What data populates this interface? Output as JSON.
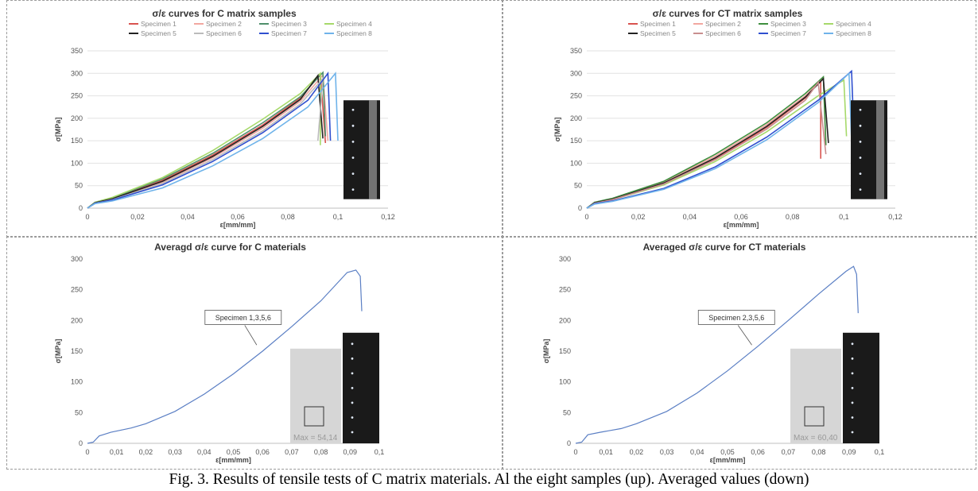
{
  "figure": {
    "caption": "Fig. 3. Results of tensile tests of C matrix materials. Al the eight samples (up). Averaged values (down)"
  },
  "chart_data": [
    {
      "type": "line",
      "title": "σ/ε curves for C matrix samples",
      "xlabel": "ε[mm/mm]",
      "ylabel": "σ[MPa]",
      "xlim": [
        0,
        0.12
      ],
      "ylim": [
        0,
        350
      ],
      "x_ticks": [
        "0",
        "0,02",
        "0,04",
        "0,06",
        "0,08",
        "0,1",
        "0,12"
      ],
      "y_ticks": [
        "0",
        "50",
        "100",
        "150",
        "200",
        "250",
        "300",
        "350"
      ],
      "grid": true,
      "legend": "top",
      "series": [
        {
          "name": "Specimen 1",
          "color": "#d9534f",
          "points": [
            [
              0,
              0
            ],
            [
              0.003,
              12
            ],
            [
              0.01,
              22
            ],
            [
              0.03,
              62
            ],
            [
              0.05,
              118
            ],
            [
              0.07,
              185
            ],
            [
              0.085,
              245
            ],
            [
              0.093,
              298
            ],
            [
              0.095,
              145
            ]
          ]
        },
        {
          "name": "Specimen 2",
          "color": "#f2a7a0",
          "points": [
            [
              0,
              0
            ],
            [
              0.003,
              12
            ],
            [
              0.01,
              20
            ],
            [
              0.03,
              58
            ],
            [
              0.05,
              112
            ],
            [
              0.07,
              178
            ],
            [
              0.085,
              238
            ],
            [
              0.094,
              296
            ],
            [
              0.096,
              150
            ]
          ]
        },
        {
          "name": "Specimen 3",
          "color": "#4f8f6b",
          "points": [
            [
              0,
              0
            ],
            [
              0.003,
              13
            ],
            [
              0.01,
              23
            ],
            [
              0.03,
              65
            ],
            [
              0.05,
              122
            ],
            [
              0.07,
              190
            ],
            [
              0.085,
              248
            ],
            [
              0.094,
              302
            ],
            [
              0.095,
              160
            ]
          ]
        },
        {
          "name": "Specimen 4",
          "color": "#a6d96a",
          "points": [
            [
              0,
              0
            ],
            [
              0.003,
              13
            ],
            [
              0.01,
              24
            ],
            [
              0.03,
              68
            ],
            [
              0.05,
              128
            ],
            [
              0.07,
              198
            ],
            [
              0.085,
              255
            ],
            [
              0.093,
              300
            ],
            [
              0.093,
              140
            ]
          ]
        },
        {
          "name": "Specimen 5",
          "color": "#222222",
          "points": [
            [
              0,
              0
            ],
            [
              0.003,
              12
            ],
            [
              0.01,
              21
            ],
            [
              0.03,
              60
            ],
            [
              0.05,
              115
            ],
            [
              0.07,
              182
            ],
            [
              0.085,
              242
            ],
            [
              0.092,
              295
            ],
            [
              0.094,
              155
            ]
          ]
        },
        {
          "name": "Specimen 6",
          "color": "#bbbbbb",
          "points": [
            [
              0,
              0
            ],
            [
              0.003,
              11
            ],
            [
              0.01,
              19
            ],
            [
              0.03,
              55
            ],
            [
              0.05,
              108
            ],
            [
              0.07,
              172
            ],
            [
              0.085,
              232
            ],
            [
              0.094,
              288
            ],
            [
              0.092,
              150
            ]
          ]
        },
        {
          "name": "Specimen 7",
          "color": "#2f4fcf",
          "points": [
            [
              0,
              0
            ],
            [
              0.003,
              11
            ],
            [
              0.01,
              18
            ],
            [
              0.03,
              52
            ],
            [
              0.05,
              104
            ],
            [
              0.07,
              168
            ],
            [
              0.088,
              240
            ],
            [
              0.096,
              300
            ],
            [
              0.097,
              150
            ]
          ]
        },
        {
          "name": "Specimen 8",
          "color": "#6fb3ea",
          "points": [
            [
              0,
              0
            ],
            [
              0.003,
              10
            ],
            [
              0.01,
              16
            ],
            [
              0.03,
              45
            ],
            [
              0.05,
              94
            ],
            [
              0.07,
              155
            ],
            [
              0.088,
              225
            ],
            [
              0.099,
              300
            ],
            [
              0.1,
              150
            ]
          ]
        }
      ]
    },
    {
      "type": "line",
      "title": "σ/ε curves for CT matrix samples",
      "xlabel": "ε[mm/mm]",
      "ylabel": "σ[MPa]",
      "xlim": [
        0,
        0.12
      ],
      "ylim": [
        0,
        350
      ],
      "x_ticks": [
        "0",
        "0,02",
        "0,04",
        "0,06",
        "0,08",
        "0,1",
        "0,12"
      ],
      "y_ticks": [
        "0",
        "50",
        "100",
        "150",
        "200",
        "250",
        "300",
        "350"
      ],
      "grid": true,
      "legend": "top",
      "series": [
        {
          "name": "Specimen 1",
          "color": "#d9534f",
          "points": [
            [
              0,
              0
            ],
            [
              0.003,
              12
            ],
            [
              0.01,
              20
            ],
            [
              0.03,
              55
            ],
            [
              0.05,
              110
            ],
            [
              0.07,
              180
            ],
            [
              0.085,
              245
            ],
            [
              0.091,
              285
            ],
            [
              0.091,
              110
            ]
          ]
        },
        {
          "name": "Specimen 2",
          "color": "#f2a7a0",
          "points": [
            [
              0,
              0
            ],
            [
              0.003,
              12
            ],
            [
              0.01,
              21
            ],
            [
              0.03,
              58
            ],
            [
              0.05,
              116
            ],
            [
              0.07,
              186
            ],
            [
              0.085,
              250
            ],
            [
              0.092,
              290
            ],
            [
              0.093,
              140
            ]
          ]
        },
        {
          "name": "Specimen 3",
          "color": "#3f8f3f",
          "points": [
            [
              0,
              0
            ],
            [
              0.003,
              13
            ],
            [
              0.01,
              22
            ],
            [
              0.03,
              60
            ],
            [
              0.05,
              120
            ],
            [
              0.07,
              190
            ],
            [
              0.085,
              255
            ],
            [
              0.092,
              292
            ],
            [
              0.093,
              140
            ]
          ]
        },
        {
          "name": "Specimen 4",
          "color": "#a6d96a",
          "points": [
            [
              0,
              0
            ],
            [
              0.003,
              12
            ],
            [
              0.01,
              19
            ],
            [
              0.03,
              52
            ],
            [
              0.05,
              104
            ],
            [
              0.07,
              170
            ],
            [
              0.09,
              250
            ],
            [
              0.1,
              285
            ],
            [
              0.101,
              160
            ]
          ]
        },
        {
          "name": "Specimen 5",
          "color": "#222222",
          "points": [
            [
              0,
              0
            ],
            [
              0.003,
              12
            ],
            [
              0.01,
              20
            ],
            [
              0.03,
              56
            ],
            [
              0.05,
              112
            ],
            [
              0.07,
              182
            ],
            [
              0.085,
              247
            ],
            [
              0.092,
              288
            ],
            [
              0.094,
              145
            ]
          ]
        },
        {
          "name": "Specimen 6",
          "color": "#c98f8f",
          "points": [
            [
              0,
              0
            ],
            [
              0.003,
              11
            ],
            [
              0.01,
              19
            ],
            [
              0.03,
              54
            ],
            [
              0.05,
              108
            ],
            [
              0.07,
              176
            ],
            [
              0.085,
              240
            ],
            [
              0.09,
              280
            ],
            [
              0.093,
              120
            ]
          ]
        },
        {
          "name": "Specimen 7",
          "color": "#2f4fcf",
          "points": [
            [
              0,
              0
            ],
            [
              0.003,
              10
            ],
            [
              0.01,
              16
            ],
            [
              0.03,
              44
            ],
            [
              0.05,
              92
            ],
            [
              0.07,
              158
            ],
            [
              0.09,
              240
            ],
            [
              0.103,
              305
            ],
            [
              0.104,
              150
            ]
          ]
        },
        {
          "name": "Specimen 8",
          "color": "#6fb3ea",
          "points": [
            [
              0,
              0
            ],
            [
              0.003,
              9
            ],
            [
              0.01,
              15
            ],
            [
              0.03,
              42
            ],
            [
              0.05,
              88
            ],
            [
              0.07,
              152
            ],
            [
              0.09,
              235
            ],
            [
              0.102,
              300
            ],
            [
              0.103,
              150
            ]
          ]
        }
      ]
    },
    {
      "type": "line",
      "title": "Averagd σ/ε curve for C materials",
      "xlabel": "ε[mm/mm]",
      "ylabel": "σ[MPa]",
      "xlim": [
        0,
        0.1
      ],
      "ylim": [
        0,
        300
      ],
      "x_ticks": [
        "0",
        "0,01",
        "0,02",
        "0,03",
        "0,04",
        "0,05",
        "0,06",
        "0,07",
        "0,08",
        "0,09",
        "0,1"
      ],
      "y_ticks": [
        "0",
        "50",
        "100",
        "150",
        "200",
        "250",
        "300"
      ],
      "grid": false,
      "callout": "Specimen 1,3,5,6",
      "inset_label": "Max = 54,14",
      "series": [
        {
          "name": "",
          "color": "#5b7fc4",
          "points": [
            [
              0,
              0
            ],
            [
              0.002,
              2
            ],
            [
              0.004,
              12
            ],
            [
              0.008,
              18
            ],
            [
              0.015,
              25
            ],
            [
              0.02,
              32
            ],
            [
              0.03,
              52
            ],
            [
              0.04,
              80
            ],
            [
              0.05,
              113
            ],
            [
              0.06,
              150
            ],
            [
              0.07,
              190
            ],
            [
              0.08,
              232
            ],
            [
              0.089,
              278
            ],
            [
              0.092,
              282
            ],
            [
              0.0935,
              272
            ],
            [
              0.094,
              215
            ]
          ]
        }
      ]
    },
    {
      "type": "line",
      "title": "Averaged σ/ε curve for CT materials",
      "xlabel": "ε[mm/mm]",
      "ylabel": "σ[MPa]",
      "xlim": [
        0,
        0.1
      ],
      "ylim": [
        0,
        300
      ],
      "x_ticks": [
        "0",
        "0,01",
        "0,02",
        "0,03",
        "0,04",
        "0,05",
        "0,06",
        "0,07",
        "0,08",
        "0,09",
        "0,1"
      ],
      "y_ticks": [
        "0",
        "50",
        "100",
        "150",
        "200",
        "250",
        "300"
      ],
      "grid": false,
      "callout": "Specimen 2,3,5,6",
      "inset_label": "Max = 60,40",
      "series": [
        {
          "name": "",
          "color": "#5b7fc4",
          "points": [
            [
              0,
              0
            ],
            [
              0.002,
              2
            ],
            [
              0.004,
              14
            ],
            [
              0.008,
              18
            ],
            [
              0.015,
              24
            ],
            [
              0.02,
              32
            ],
            [
              0.03,
              52
            ],
            [
              0.04,
              82
            ],
            [
              0.05,
              118
            ],
            [
              0.06,
              158
            ],
            [
              0.07,
              200
            ],
            [
              0.08,
              243
            ],
            [
              0.089,
              280
            ],
            [
              0.0915,
              288
            ],
            [
              0.0925,
              275
            ],
            [
              0.093,
              212
            ]
          ]
        }
      ]
    }
  ]
}
